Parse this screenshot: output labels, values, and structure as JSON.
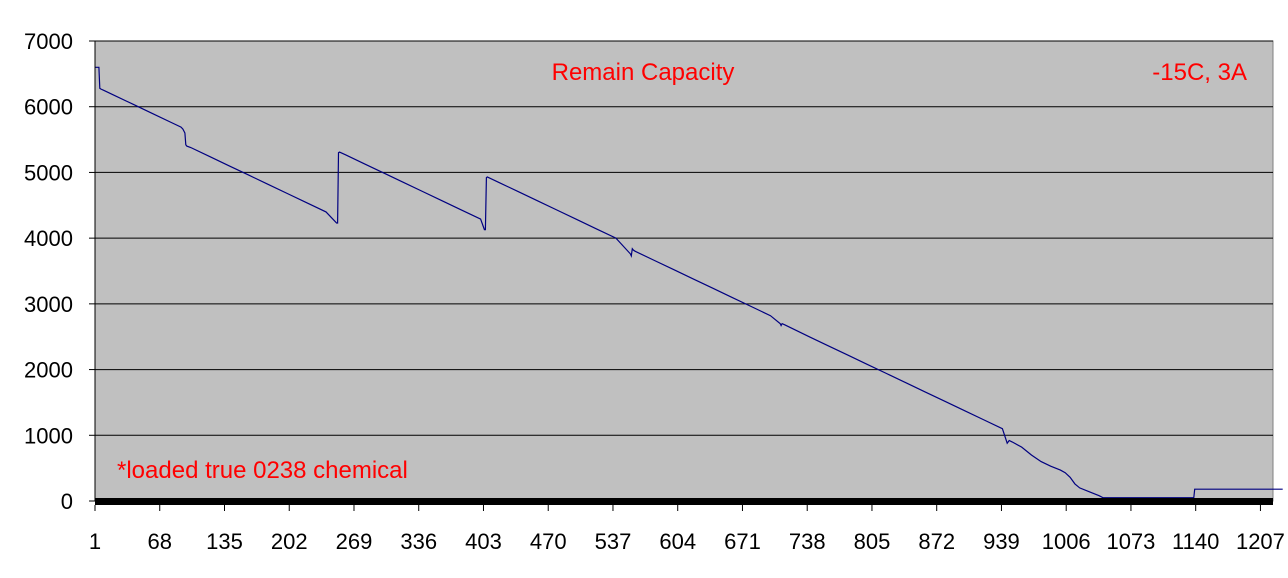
{
  "chart_data": {
    "type": "line",
    "title": "Remain Capacity",
    "subtitle": "-15C, 3A",
    "annotation": "*loaded true 0238 chemical",
    "xlabel": "",
    "ylabel": "",
    "xlim": [
      1,
      1220
    ],
    "ylim": [
      0,
      7000
    ],
    "y_ticks": [
      0,
      1000,
      2000,
      3000,
      4000,
      5000,
      6000,
      7000
    ],
    "x_tick_labels": [
      "1",
      "68",
      "135",
      "202",
      "269",
      "336",
      "403",
      "470",
      "537",
      "604",
      "671",
      "738",
      "805",
      "872",
      "939",
      "1006",
      "1073",
      "1140",
      "1207"
    ],
    "grid": "horizontal",
    "legend": "none",
    "series": [
      {
        "x": [
          1,
          3,
          5,
          6,
          7,
          10,
          20,
          40,
          60,
          80,
          90,
          92,
          94,
          95,
          96,
          100,
          120,
          140,
          160,
          180,
          200,
          220,
          240,
          251,
          252,
          253,
          254,
          260,
          280,
          300,
          320,
          340,
          360,
          380,
          400,
          404,
          405,
          406,
          407,
          420,
          440,
          460,
          480,
          500,
          520,
          540,
          555,
          556,
          557,
          558,
          560,
          580,
          600,
          620,
          640,
          660,
          680,
          700,
          710,
          711,
          712,
          715,
          740,
          760,
          780,
          800,
          820,
          840,
          860,
          880,
          900,
          920,
          940,
          945,
          947,
          950,
          960,
          970,
          980,
          990,
          1000,
          1005,
          1010,
          1015,
          1020,
          1030,
          1040,
          1044,
          1050,
          1080,
          1100,
          1130,
          1138,
          1139,
          1150,
          1200,
          1230
        ],
        "y": [
          6600,
          6600,
          6600,
          6280,
          6270,
          6250,
          6180,
          6040,
          5900,
          5760,
          5690,
          5660,
          5600,
          5420,
          5400,
          5380,
          5240,
          5100,
          4960,
          4820,
          4680,
          4540,
          4400,
          4230,
          4230,
          5300,
          5310,
          5270,
          5130,
          4990,
          4850,
          4710,
          4570,
          4430,
          4290,
          4130,
          4130,
          4920,
          4930,
          4840,
          4700,
          4560,
          4420,
          4280,
          4140,
          4000,
          3760,
          3730,
          3840,
          3820,
          3800,
          3660,
          3520,
          3380,
          3240,
          3100,
          2960,
          2820,
          2700,
          2670,
          2700,
          2680,
          2500,
          2360,
          2220,
          2080,
          1940,
          1800,
          1660,
          1520,
          1380,
          1240,
          1100,
          880,
          920,
          900,
          820,
          700,
          600,
          530,
          470,
          430,
          360,
          260,
          200,
          140,
          80,
          50,
          50,
          50,
          50,
          50,
          50,
          180,
          180,
          180,
          180
        ]
      }
    ],
    "colors": {
      "plot_background": "#c0c0c0",
      "line": "#000080",
      "annotation": "#ff0000",
      "baseline": "#000000",
      "gridline": "#000000"
    }
  }
}
